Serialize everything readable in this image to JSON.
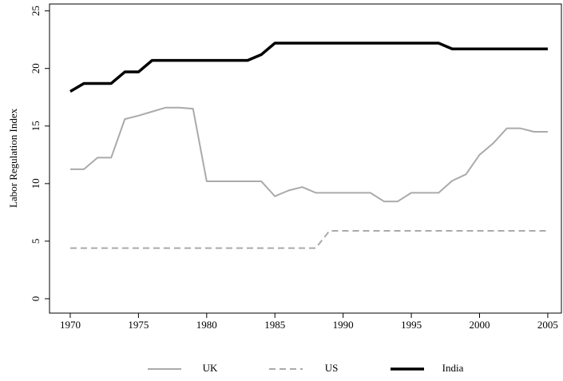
{
  "chart_data": {
    "type": "line",
    "ylabel": "Labor Regulation Index",
    "x": [
      1970,
      1971,
      1972,
      1973,
      1974,
      1975,
      1976,
      1977,
      1978,
      1979,
      1980,
      1981,
      1982,
      1983,
      1984,
      1985,
      1986,
      1987,
      1988,
      1989,
      1990,
      1991,
      1992,
      1993,
      1994,
      1995,
      1996,
      1997,
      1998,
      1999,
      2000,
      2001,
      2002,
      2003,
      2004,
      2005
    ],
    "series": [
      {
        "name": "UK",
        "color": "#aaaaaa",
        "dash": false,
        "values": [
          11.25,
          11.25,
          12.25,
          12.25,
          15.6,
          15.9,
          16.25,
          16.6,
          16.6,
          16.5,
          10.2,
          10.2,
          10.2,
          10.2,
          10.2,
          8.9,
          9.4,
          9.7,
          9.2,
          9.2,
          9.2,
          9.2,
          9.2,
          8.45,
          8.45,
          9.2,
          9.2,
          9.2,
          10.25,
          10.8,
          12.5,
          13.5,
          14.8,
          14.8,
          14.5,
          14.5
        ]
      },
      {
        "name": "US",
        "color": "#aaaaaa",
        "dash": true,
        "values": [
          4.4,
          4.4,
          4.4,
          4.4,
          4.4,
          4.4,
          4.4,
          4.4,
          4.4,
          4.4,
          4.4,
          4.4,
          4.4,
          4.4,
          4.4,
          4.4,
          4.4,
          4.4,
          4.4,
          5.9,
          5.9,
          5.9,
          5.9,
          5.9,
          5.9,
          5.9,
          5.9,
          5.9,
          5.9,
          5.9,
          5.9,
          5.9,
          5.9,
          5.9,
          5.9,
          5.9
        ]
      },
      {
        "name": "India",
        "color": "#000000",
        "dash": false,
        "values": [
          18,
          18.7,
          18.7,
          18.7,
          19.7,
          19.7,
          20.7,
          20.7,
          20.7,
          20.7,
          20.7,
          20.7,
          20.7,
          20.7,
          21.2,
          22.2,
          22.2,
          22.2,
          22.2,
          22.2,
          22.2,
          22.2,
          22.2,
          22.2,
          22.2,
          22.2,
          22.2,
          22.2,
          21.7,
          21.7,
          21.7,
          21.7,
          21.7,
          21.7,
          21.7,
          21.7
        ]
      }
    ],
    "xlim": [
      1968.48,
      2006.0
    ],
    "ylim": [
      -1.25,
      25.6
    ],
    "xticks": [
      1970,
      1975,
      1980,
      1985,
      1990,
      1995,
      2000,
      2005
    ],
    "yticks": [
      0,
      5,
      10,
      15,
      20,
      25
    ],
    "legend": "bottom"
  }
}
